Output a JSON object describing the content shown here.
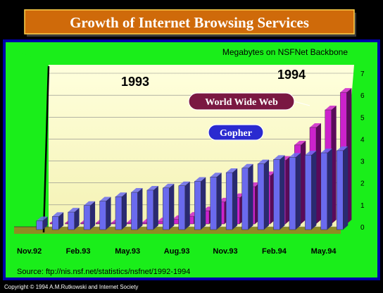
{
  "colors": {
    "background": "#000000",
    "frame": "#0000aa",
    "panel": "#1aee1a",
    "wall": "#ffffcc",
    "floor": "#8e8c22",
    "gopher": "#6a6aee",
    "gopher_dark": "#2a2a70",
    "www": "#cc22cc",
    "www_dark": "#5a0a5a",
    "title_fill": "#cf6a0a",
    "title_text": "#ffffff",
    "www_label_fill": "#7a1842",
    "gopher_label_fill": "#2a2ad0"
  },
  "header": {
    "title": "Growth of Internet Browsing Services"
  },
  "chart_data": {
    "type": "bar",
    "title": "Growth of Internet Browsing Services",
    "ylabel": "Megabytes on NSFNet Backbone",
    "ylim": [
      0,
      7
    ],
    "yticks": [
      "0",
      "1",
      "2",
      "3",
      "4",
      "5",
      "6",
      "7"
    ],
    "categories": [
      "Nov.92",
      "Dec.92",
      "Jan.93",
      "Feb.93",
      "Mar.93",
      "Apr.93",
      "May.93",
      "Jun.93",
      "Jul.93",
      "Aug.93",
      "Sep.93",
      "Oct.93",
      "Nov.93",
      "Dec.93",
      "Jan.94",
      "Feb.94",
      "Mar.94",
      "Apr.94",
      "May.94",
      "Jun.94"
    ],
    "tick_labels": [
      "Nov.92",
      "Feb.93",
      "May.93",
      "Aug.93",
      "Nov.93",
      "Feb.94",
      "May.94"
    ],
    "year_labels": [
      "1993",
      "1994"
    ],
    "series": [
      {
        "name": "World Wide Web",
        "values": [
          0.05,
          0.05,
          0.05,
          0.05,
          0.05,
          0.05,
          0.05,
          0.1,
          0.2,
          0.35,
          0.6,
          1.0,
          1.2,
          1.7,
          2.2,
          2.9,
          3.6,
          4.4,
          5.2,
          6.0
        ]
      },
      {
        "name": "Gopher",
        "values": [
          0.4,
          0.6,
          0.8,
          1.1,
          1.3,
          1.5,
          1.7,
          1.8,
          1.9,
          2.0,
          2.2,
          2.4,
          2.6,
          2.8,
          3.0,
          3.2,
          3.3,
          3.4,
          3.5,
          3.6
        ]
      }
    ]
  },
  "source_text": "Source: ftp://nis.nsf.net/statistics/nsfnet/1992-1994",
  "copyright_text": "Copyright © 1994 A.M.Rutkowski and Internet Society"
}
